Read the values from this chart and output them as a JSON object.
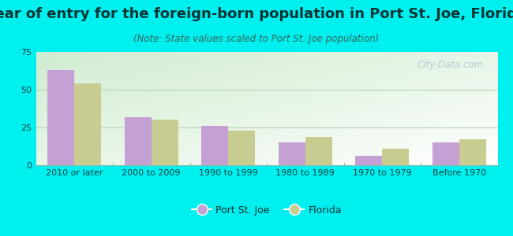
{
  "title": "Year of entry for the foreign-born population in Port St. Joe, Florida",
  "subtitle": "(Note: State values scaled to Port St. Joe population)",
  "categories": [
    "2010 or later",
    "2000 to 2009",
    "1990 to 1999",
    "1980 to 1989",
    "1970 to 1979",
    "Before 1970"
  ],
  "port_st_joe": [
    63,
    32,
    26,
    15,
    6,
    15
  ],
  "florida": [
    54,
    30,
    23,
    19,
    11,
    17
  ],
  "bar_color_psj": "#c4a0d4",
  "bar_color_fl": "#c8cc90",
  "background_color": "#00efef",
  "ylim": [
    0,
    75
  ],
  "yticks": [
    0,
    25,
    50,
    75
  ],
  "watermark": "City-Data.com",
  "legend_psj": "Port St. Joe",
  "legend_fl": "Florida",
  "bar_width": 0.35,
  "title_fontsize": 13,
  "subtitle_fontsize": 8.5,
  "axis_fontsize": 8,
  "legend_fontsize": 9
}
